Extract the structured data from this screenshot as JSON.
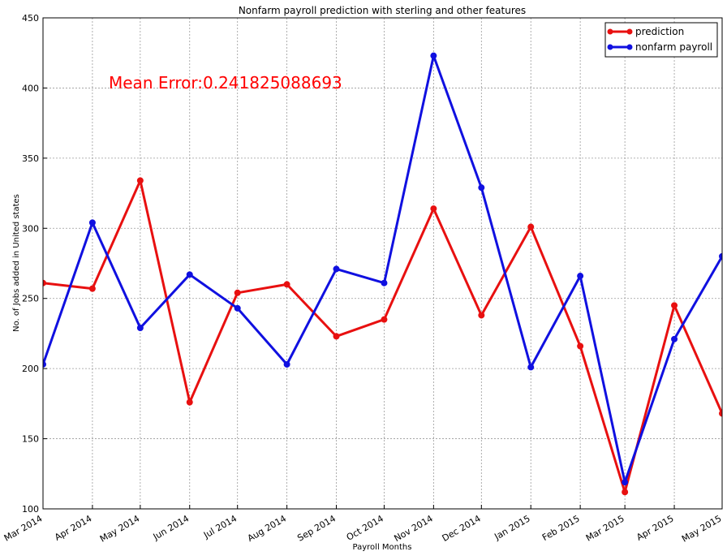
{
  "chart_data": {
    "type": "line",
    "title": "Nonfarm payroll prediction with sterling and other features",
    "xlabel": "Payroll Months",
    "ylabel": "No. of Jobs added in United states",
    "ylim": [
      100,
      450
    ],
    "yticks": [
      100,
      150,
      200,
      250,
      300,
      350,
      400,
      450
    ],
    "grid": true,
    "legend_position": "top-right",
    "annotation": "Mean Error:0.241825088693",
    "annotation_color": "#ff0000",
    "categories": [
      "Mar 2014",
      "Apr 2014",
      "May 2014",
      "Jun 2014",
      "Jul 2014",
      "Aug 2014",
      "Sep 2014",
      "Oct 2014",
      "Nov 2014",
      "Dec 2014",
      "Jan 2015",
      "Feb 2015",
      "Mar 2015",
      "Apr 2015",
      "May 2015"
    ],
    "x_dates": [
      "2014-03-01",
      "2014-04-01",
      "2014-05-01",
      "2014-06-01",
      "2014-07-01",
      "2014-08-01",
      "2014-09-01",
      "2014-10-01",
      "2014-11-01",
      "2014-12-01",
      "2015-01-01",
      "2015-02-01",
      "2015-03-01",
      "2015-04-01",
      "2015-05-01"
    ],
    "series": [
      {
        "name": "prediction",
        "color": "#e81010",
        "x": [
          "2014-03-01",
          "2014-04-01",
          "2014-05-01",
          "2014-06-01",
          "2014-07-01",
          "2014-08-01",
          "2014-09-01",
          "2014-10-01",
          "2014-11-01",
          "2014-12-01",
          "2015-01-01",
          "2015-02-01",
          "2015-03-01",
          "2015-04-01",
          "2015-05-01"
        ],
        "values": [
          261,
          257,
          334,
          176,
          254,
          260,
          223,
          235,
          314,
          238,
          301,
          216,
          112,
          245,
          168
        ]
      },
      {
        "name": "nonfarm payroll",
        "color": "#1010e0",
        "x": [
          "2014-03-01",
          "2014-04-01",
          "2014-05-01",
          "2014-06-01",
          "2014-07-01",
          "2014-08-01",
          "2014-09-01",
          "2014-10-01",
          "2014-11-01",
          "2014-12-01",
          "2015-01-01",
          "2015-02-01",
          "2015-03-01",
          "2015-04-01",
          "2015-05-01"
        ],
        "values": [
          203,
          304,
          229,
          267,
          243,
          203,
          271,
          261,
          423,
          329,
          201,
          266,
          119,
          221,
          280
        ]
      }
    ]
  }
}
